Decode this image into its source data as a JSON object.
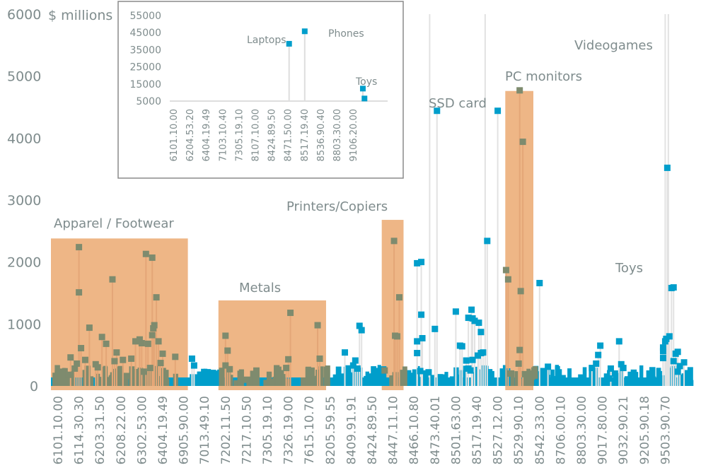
{
  "chart_data": [
    {
      "type": "scatter",
      "title": "",
      "ylabel": "$ millions",
      "xlabel": "",
      "ylim": [
        0,
        6000
      ],
      "yticks": [
        "0",
        "1000",
        "2000",
        "3000",
        "4000",
        "5000",
        "6000"
      ],
      "grid": false,
      "xticks": [
        "6101.10.00",
        "6114.30.30",
        "6203.31.50",
        "6208.22.00",
        "6302.53.00",
        "6404.19.49",
        "6905.90.00",
        "7013.49.10",
        "7202.11.50",
        "7217.10.50",
        "7305.19.10",
        "7326.19.00",
        "7615.10.70",
        "8205.59.55",
        "8409.91.91",
        "8424.89.50",
        "8447.11.10",
        "8466.10.80",
        "8473.40.01",
        "8501.63.00",
        "8517.19.40",
        "8527.12.00",
        "8529.90.10",
        "8542.33.00",
        "8706.00.10",
        "8803.30.00",
        "9017.80.00",
        "9032.90.21",
        "9205.90.18",
        "9503.90.70"
      ],
      "colors": {
        "point": "#009ecb",
        "highlight_point": "#7e8b6e",
        "band": "#eeb686",
        "stem": "#e2e2e2"
      },
      "highlight_bands": [
        {
          "label": "Apparel / Footwear",
          "from": 0,
          "to": 6
        },
        {
          "label": "Metals",
          "from": 8,
          "to": 12.6
        },
        {
          "label": "Printers/Copiers",
          "from": 15.8,
          "to": 16.3
        },
        {
          "label": "PC monitors",
          "from": 21.7,
          "to": 22.5
        }
      ],
      "annotations": [
        "Printers/Copiers",
        "SSD card",
        "PC monitors",
        "Videogames",
        "Toys",
        "Apparel / Footwear",
        "Metals"
      ],
      "points": [
        [
          1.0,
          2240
        ],
        [
          1.0,
          1510
        ],
        [
          1.1,
          610
        ],
        [
          1.3,
          420
        ],
        [
          1.5,
          940
        ],
        [
          0.6,
          460
        ],
        [
          0.9,
          360
        ],
        [
          0.8,
          280
        ],
        [
          2.1,
          790
        ],
        [
          2.3,
          680
        ],
        [
          2.6,
          1720
        ],
        [
          2.8,
          540
        ],
        [
          3.1,
          420
        ],
        [
          3.3,
          160
        ],
        [
          1.8,
          350
        ],
        [
          1.9,
          300
        ],
        [
          2.7,
          400
        ],
        [
          3.5,
          440
        ],
        [
          3.7,
          720
        ],
        [
          3.9,
          750
        ],
        [
          4.0,
          690
        ],
        [
          4.2,
          2130
        ],
        [
          4.5,
          2070
        ],
        [
          4.3,
          680
        ],
        [
          4.7,
          1430
        ],
        [
          4.6,
          980
        ],
        [
          4.55,
          930
        ],
        [
          4.5,
          820
        ],
        [
          4.8,
          720
        ],
        [
          4.9,
          370
        ],
        [
          5.0,
          520
        ],
        [
          4.1,
          230
        ],
        [
          4.4,
          290
        ],
        [
          0.2,
          200
        ],
        [
          0.5,
          180
        ],
        [
          5.6,
          470
        ],
        [
          6.4,
          440
        ],
        [
          6.5,
          330
        ],
        [
          7.4,
          210
        ],
        [
          8.0,
          810
        ],
        [
          8.1,
          570
        ],
        [
          8.0,
          330
        ],
        [
          8.2,
          270
        ],
        [
          9.0,
          100
        ],
        [
          11.1,
          1180
        ],
        [
          11.0,
          430
        ],
        [
          10.9,
          290
        ],
        [
          12.4,
          980
        ],
        [
          12.5,
          440
        ],
        [
          13.7,
          540
        ],
        [
          14.4,
          970
        ],
        [
          14.5,
          900
        ],
        [
          14.2,
          410
        ],
        [
          14.1,
          330
        ],
        [
          14.3,
          280
        ],
        [
          15.2,
          170
        ],
        [
          15.6,
          250
        ],
        [
          16.05,
          2340
        ],
        [
          16.3,
          1430
        ],
        [
          16.2,
          800
        ],
        [
          16.1,
          810
        ],
        [
          17.15,
          1980
        ],
        [
          17.35,
          2000
        ],
        [
          17.35,
          1150
        ],
        [
          17.4,
          770
        ],
        [
          17.15,
          720
        ],
        [
          17.15,
          530
        ],
        [
          17.3,
          240
        ],
        [
          17.7,
          220
        ],
        [
          18.1,
          4440
        ],
        [
          18.0,
          920
        ],
        [
          19.0,
          1200
        ],
        [
          19.3,
          640
        ],
        [
          19.2,
          650
        ],
        [
          19.6,
          1100
        ],
        [
          19.75,
          1230
        ],
        [
          19.8,
          1090
        ],
        [
          19.9,
          1050
        ],
        [
          20.1,
          1020
        ],
        [
          20.2,
          870
        ],
        [
          19.5,
          410
        ],
        [
          19.8,
          420
        ],
        [
          20.05,
          490
        ],
        [
          19.6,
          280
        ],
        [
          19.7,
          250
        ],
        [
          20.2,
          530
        ],
        [
          20.3,
          540
        ],
        [
          20.5,
          2340
        ],
        [
          21.0,
          4440
        ],
        [
          21.4,
          1870
        ],
        [
          21.5,
          1720
        ],
        [
          21.6,
          200
        ],
        [
          23.0,
          1660
        ],
        [
          23.4,
          310
        ],
        [
          22.05,
          4770
        ],
        [
          22.2,
          3940
        ],
        [
          22.1,
          1530
        ],
        [
          22.05,
          580
        ],
        [
          22.0,
          360
        ],
        [
          22.3,
          190
        ],
        [
          25.5,
          290
        ],
        [
          25.7,
          360
        ],
        [
          25.8,
          500
        ],
        [
          25.9,
          650
        ],
        [
          26.4,
          280
        ],
        [
          26.6,
          200
        ],
        [
          26.8,
          720
        ],
        [
          26.9,
          350
        ],
        [
          27.0,
          290
        ],
        [
          26.3,
          120
        ],
        [
          28.9,
          560
        ],
        [
          28.9,
          620
        ],
        [
          29.0,
          720
        ],
        [
          29.05,
          760
        ],
        [
          28.9,
          450
        ],
        [
          29.1,
          3520
        ],
        [
          29.3,
          1580
        ],
        [
          29.4,
          1590
        ],
        [
          29.2,
          800
        ],
        [
          29.5,
          520
        ],
        [
          29.6,
          550
        ],
        [
          29.4,
          400
        ],
        [
          29.7,
          320
        ],
        [
          29.9,
          380
        ],
        [
          29.6,
          230
        ]
      ]
    },
    {
      "type": "scatter",
      "title": "",
      "ylim": [
        5000,
        55000
      ],
      "yticks": [
        "5000",
        "15000",
        "25000",
        "35000",
        "45000",
        "55000"
      ],
      "xticks": [
        "6101.10.00",
        "6204.53.20",
        "6404.19.49",
        "7103.10.40",
        "7305.19.10",
        "8107.10.00",
        "8424.89.50",
        "8471.50.00",
        "8517.19.40",
        "8536.90.40",
        "8803.30.00",
        "9106.20.00"
      ],
      "annotations": [
        "Laptops",
        "Phones",
        "Toys"
      ],
      "points": [
        {
          "label": "Laptops",
          "x": 7,
          "y": 38500
        },
        {
          "label": "Phones",
          "x": 8,
          "y": 45800
        },
        {
          "label": "Toys",
          "x": 11.6,
          "y": 12300
        },
        {
          "label": "",
          "x": 11.7,
          "y": 6500
        }
      ]
    }
  ]
}
